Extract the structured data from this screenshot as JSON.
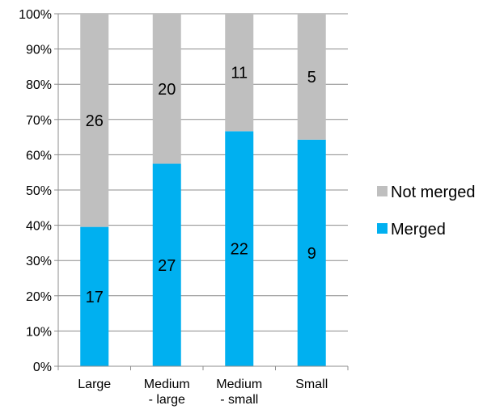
{
  "chart_data": {
    "type": "bar",
    "stacked": "percent",
    "categories": [
      [
        "Large"
      ],
      [
        "Medium",
        "- large"
      ],
      [
        "Medium",
        "- small"
      ],
      [
        "Small"
      ]
    ],
    "series": [
      {
        "name": "Merged",
        "values": [
          17,
          27,
          22,
          9
        ],
        "color": "#00b0f0"
      },
      {
        "name": "Not merged",
        "values": [
          26,
          20,
          11,
          5
        ],
        "color": "#bfbfbf"
      }
    ],
    "title": "",
    "xlabel": "",
    "ylabel": "",
    "ylim": [
      0,
      100
    ],
    "yticks": [
      "0%",
      "10%",
      "20%",
      "30%",
      "40%",
      "50%",
      "60%",
      "70%",
      "80%",
      "90%",
      "100%"
    ],
    "grid": true,
    "legend_position": "right"
  }
}
